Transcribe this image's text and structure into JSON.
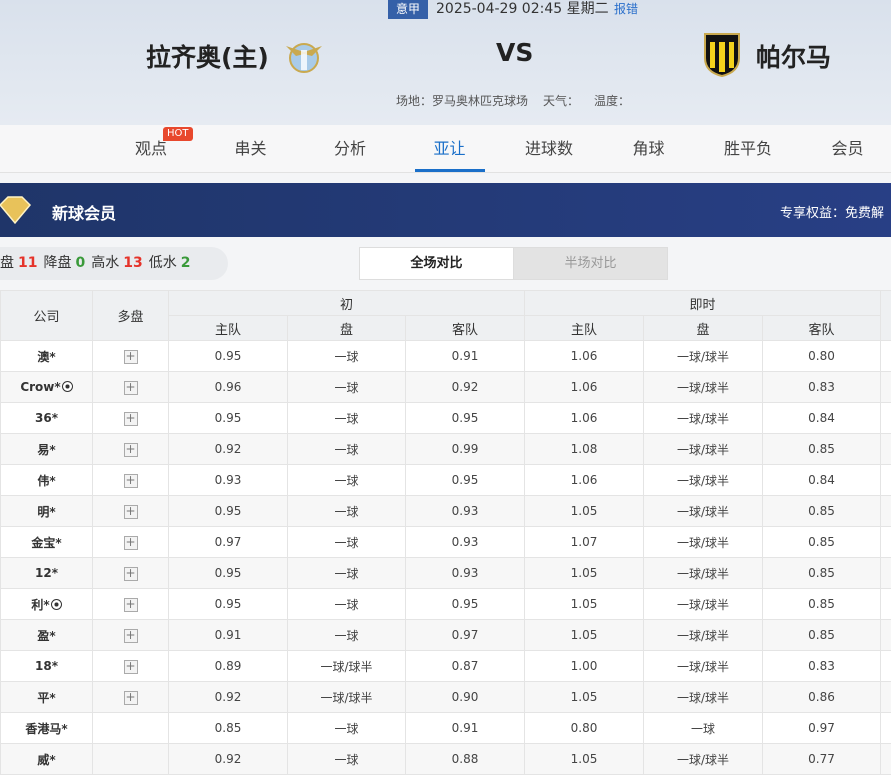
{
  "header": {
    "league": "意甲",
    "datetime": "2025-04-29 02:45 星期二",
    "report": "报错",
    "home": "拉齐奥(主)",
    "vs": "VS",
    "away": "帕尔马",
    "venue": "场地：罗马奥林匹克球场",
    "weather": "天气：",
    "temperature": "温度："
  },
  "tabs": {
    "items": [
      "观点",
      "串关",
      "分析",
      "亚让",
      "进球数",
      "角球",
      "胜平负",
      "会员"
    ],
    "hot": "HOT",
    "active": 3
  },
  "banner": {
    "title": "新球会员",
    "rights": "专享权益：免费解"
  },
  "stats": [
    {
      "label": "盘",
      "value": "11",
      "color": "red"
    },
    {
      "label": "降盘",
      "value": "0",
      "color": "green"
    },
    {
      "label": "高水",
      "value": "13",
      "color": "red"
    },
    {
      "label": "低水",
      "value": "2",
      "color": "green"
    }
  ],
  "toggle": {
    "items": [
      "全场对比",
      "半场对比"
    ],
    "active": 0
  },
  "table": {
    "headers": {
      "company": "公司",
      "multi": "多盘",
      "initial": "初",
      "live": "即时",
      "sub": [
        "主队",
        "盘",
        "客队",
        "主队",
        "盘",
        "客队"
      ]
    },
    "rows": [
      {
        "company": "澳*",
        "multi": true,
        "ball": false,
        "odds": [
          "0.95",
          "一球",
          "0.91",
          "1.06",
          "一球/球半",
          "0.80"
        ]
      },
      {
        "company": "Crow*",
        "multi": true,
        "ball": true,
        "odds": [
          "0.96",
          "一球",
          "0.92",
          "1.06",
          "一球/球半",
          "0.83"
        ]
      },
      {
        "company": "36*",
        "multi": true,
        "ball": false,
        "odds": [
          "0.95",
          "一球",
          "0.95",
          "1.06",
          "一球/球半",
          "0.84"
        ]
      },
      {
        "company": "易*",
        "multi": true,
        "ball": false,
        "odds": [
          "0.92",
          "一球",
          "0.99",
          "1.08",
          "一球/球半",
          "0.85"
        ]
      },
      {
        "company": "伟*",
        "multi": true,
        "ball": false,
        "odds": [
          "0.93",
          "一球",
          "0.95",
          "1.06",
          "一球/球半",
          "0.84"
        ]
      },
      {
        "company": "明*",
        "multi": true,
        "ball": false,
        "odds": [
          "0.95",
          "一球",
          "0.93",
          "1.05",
          "一球/球半",
          "0.85"
        ]
      },
      {
        "company": "金宝*",
        "multi": true,
        "ball": false,
        "odds": [
          "0.97",
          "一球",
          "0.93",
          "1.07",
          "一球/球半",
          "0.85"
        ]
      },
      {
        "company": "12*",
        "multi": true,
        "ball": false,
        "odds": [
          "0.95",
          "一球",
          "0.93",
          "1.05",
          "一球/球半",
          "0.85"
        ]
      },
      {
        "company": "利*",
        "multi": true,
        "ball": true,
        "odds": [
          "0.95",
          "一球",
          "0.95",
          "1.05",
          "一球/球半",
          "0.85"
        ]
      },
      {
        "company": "盈*",
        "multi": true,
        "ball": false,
        "odds": [
          "0.91",
          "一球",
          "0.97",
          "1.05",
          "一球/球半",
          "0.85"
        ]
      },
      {
        "company": "18*",
        "multi": true,
        "ball": false,
        "odds": [
          "0.89",
          "一球/球半",
          "0.87",
          "1.00",
          "一球/球半",
          "0.83"
        ]
      },
      {
        "company": "平*",
        "multi": true,
        "ball": false,
        "odds": [
          "0.92",
          "一球/球半",
          "0.90",
          "1.05",
          "一球/球半",
          "0.86"
        ]
      },
      {
        "company": "香港马*",
        "multi": false,
        "ball": false,
        "odds": [
          "0.85",
          "一球",
          "0.91",
          "0.80",
          "一球",
          "0.97"
        ]
      },
      {
        "company": "威*",
        "multi": false,
        "ball": false,
        "odds": [
          "0.92",
          "一球",
          "0.88",
          "1.05",
          "一球/球半",
          "0.77"
        ]
      }
    ]
  }
}
